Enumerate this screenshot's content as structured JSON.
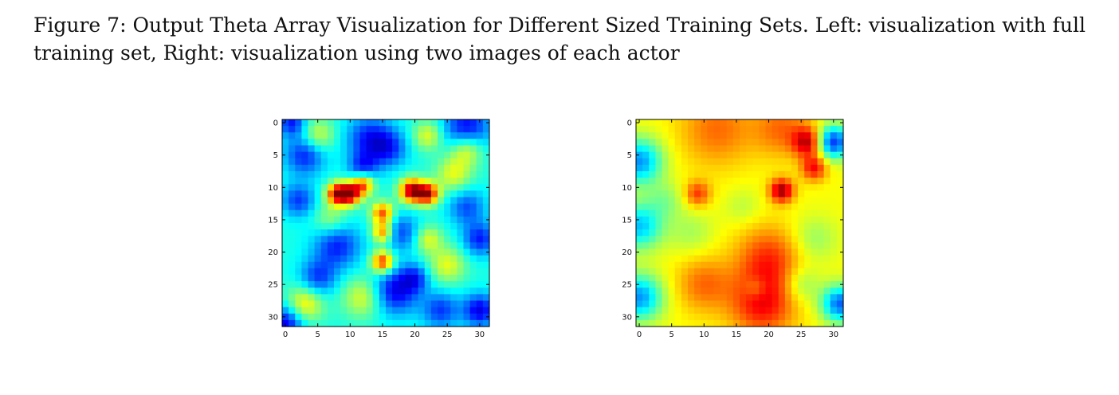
{
  "caption": {
    "label": "Figure 7:",
    "text": "Output Theta Array Visualization for Different Sized Training Sets. Left: visualization with full training set, Right: visualization using two images of each actor"
  },
  "colormap": [
    "#00008f",
    "#0000ff",
    "#0080ff",
    "#00ffff",
    "#80ff80",
    "#ffff00",
    "#ff8000",
    "#ff0000",
    "#800000"
  ],
  "chart_data": [
    {
      "type": "heatmap",
      "title": "",
      "xlabel": "",
      "ylabel": "",
      "xlim": [
        0,
        31
      ],
      "ylim": [
        31,
        0
      ],
      "xticks": [
        0,
        5,
        10,
        15,
        20,
        25,
        30
      ],
      "yticks": [
        0,
        5,
        10,
        15,
        20,
        25,
        30
      ],
      "grid": false,
      "base_value": 0.4,
      "features": [
        {
          "x": 3,
          "y": 5,
          "r": 2.2,
          "v": -0.25
        },
        {
          "x": 13,
          "y": 2.5,
          "r": 2.5,
          "v": -0.25
        },
        {
          "x": 16,
          "y": 4,
          "r": 2.0,
          "v": -0.2
        },
        {
          "x": 28,
          "y": 1,
          "r": 2.5,
          "v": -0.3
        },
        {
          "x": 28,
          "y": 4,
          "r": 1.8,
          "v": 0.25
        },
        {
          "x": 22,
          "y": 2,
          "r": 1.6,
          "v": 0.2
        },
        {
          "x": 5,
          "y": 2,
          "r": 1.8,
          "v": 0.2
        },
        {
          "x": 1,
          "y": 0,
          "r": 1.5,
          "v": -0.25
        },
        {
          "x": 2,
          "y": 12,
          "r": 1.8,
          "v": -0.22
        },
        {
          "x": 8,
          "y": 11,
          "r": 1.2,
          "v": 0.5
        },
        {
          "x": 10,
          "y": 11,
          "r": 1.2,
          "v": 0.5
        },
        {
          "x": 12,
          "y": 9.5,
          "r": 1.2,
          "v": 0.4
        },
        {
          "x": 19.5,
          "y": 10.5,
          "r": 1.3,
          "v": 0.55
        },
        {
          "x": 22,
          "y": 11,
          "r": 1.2,
          "v": 0.5
        },
        {
          "x": 15,
          "y": 14,
          "r": 1.2,
          "v": 0.4
        },
        {
          "x": 15,
          "y": 17,
          "r": 1.1,
          "v": 0.35
        },
        {
          "x": 15,
          "y": 21.5,
          "r": 1.2,
          "v": 0.45
        },
        {
          "x": 12,
          "y": 7,
          "r": 1.6,
          "v": -0.22
        },
        {
          "x": 8,
          "y": 19,
          "r": 2.5,
          "v": -0.25
        },
        {
          "x": 18,
          "y": 17,
          "r": 2.0,
          "v": -0.2
        },
        {
          "x": 28,
          "y": 13,
          "r": 2.0,
          "v": -0.2
        },
        {
          "x": 30,
          "y": 18,
          "r": 1.8,
          "v": -0.25
        },
        {
          "x": 25,
          "y": 22,
          "r": 2.0,
          "v": 0.2
        },
        {
          "x": 5,
          "y": 24,
          "r": 2.0,
          "v": -0.22
        },
        {
          "x": 17,
          "y": 26,
          "r": 2.5,
          "v": -0.3
        },
        {
          "x": 12,
          "y": 27,
          "r": 2.2,
          "v": 0.2
        },
        {
          "x": 3,
          "y": 28,
          "r": 2.0,
          "v": 0.25
        },
        {
          "x": 24,
          "y": 29,
          "r": 2.0,
          "v": -0.22
        },
        {
          "x": 30,
          "y": 29,
          "r": 1.8,
          "v": -0.3
        },
        {
          "x": 0,
          "y": 31,
          "r": 2.0,
          "v": -0.3
        },
        {
          "x": 22,
          "y": 18,
          "r": 1.5,
          "v": 0.2
        },
        {
          "x": 7,
          "y": 15,
          "r": 1.8,
          "v": 0.15
        },
        {
          "x": 26,
          "y": 8,
          "r": 2.0,
          "v": 0.2
        },
        {
          "x": 20,
          "y": 24,
          "r": 1.5,
          "v": -0.2
        }
      ]
    },
    {
      "type": "heatmap",
      "title": "",
      "xlabel": "",
      "ylabel": "",
      "xlim": [
        0,
        31
      ],
      "ylim": [
        31,
        0
      ],
      "xticks": [
        0,
        5,
        10,
        15,
        20,
        25,
        30
      ],
      "yticks": [
        0,
        5,
        10,
        15,
        20,
        25,
        30
      ],
      "grid": false,
      "base_value": 0.62,
      "features": [
        {
          "x": 0,
          "y": 6,
          "r": 2.5,
          "v": -0.35
        },
        {
          "x": 0,
          "y": 16,
          "r": 2.5,
          "v": -0.3
        },
        {
          "x": 0,
          "y": 27,
          "r": 2.5,
          "v": -0.35
        },
        {
          "x": 30,
          "y": 3,
          "r": 1.8,
          "v": -0.45
        },
        {
          "x": 31,
          "y": 28,
          "r": 2.0,
          "v": -0.4
        },
        {
          "x": 26,
          "y": 3,
          "r": 1.6,
          "v": 0.3
        },
        {
          "x": 27,
          "y": 7,
          "r": 1.4,
          "v": 0.25
        },
        {
          "x": 12,
          "y": 1,
          "r": 4.0,
          "v": 0.15
        },
        {
          "x": 22,
          "y": 1,
          "r": 3.0,
          "v": 0.15
        },
        {
          "x": 9,
          "y": 11,
          "r": 1.4,
          "v": 0.2
        },
        {
          "x": 22,
          "y": 10.5,
          "r": 1.3,
          "v": 0.35
        },
        {
          "x": 20,
          "y": 21,
          "r": 3.5,
          "v": 0.2
        },
        {
          "x": 19,
          "y": 28,
          "r": 3.5,
          "v": 0.25
        },
        {
          "x": 10,
          "y": 25,
          "r": 3.0,
          "v": 0.15
        },
        {
          "x": 4,
          "y": 12,
          "r": 2.0,
          "v": -0.1
        },
        {
          "x": 8,
          "y": 17,
          "r": 2.5,
          "v": -0.08
        },
        {
          "x": 27,
          "y": 18,
          "r": 2.5,
          "v": -0.1
        },
        {
          "x": 16,
          "y": 13,
          "r": 2.0,
          "v": -0.06
        },
        {
          "x": 25,
          "y": 25,
          "r": 2.0,
          "v": -0.12
        },
        {
          "x": 18,
          "y": 25.5,
          "r": 1.2,
          "v": -0.1
        }
      ]
    }
  ]
}
